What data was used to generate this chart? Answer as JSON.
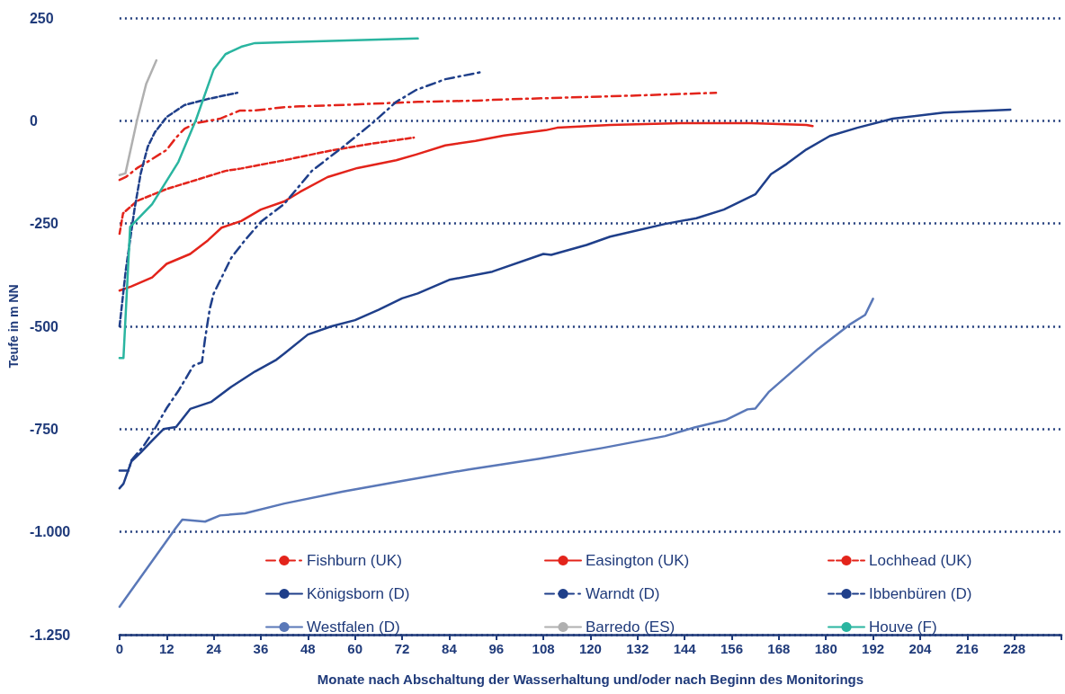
{
  "chart_data": {
    "type": "line",
    "xlabel": "Monate nach Abschaltung der Wasserhaltung und/oder nach Beginn des Monitorings",
    "ylabel": "Teufe in m NN",
    "xlim": [
      0,
      240
    ],
    "xticks": [
      0,
      12,
      24,
      36,
      48,
      60,
      72,
      84,
      96,
      108,
      120,
      132,
      144,
      156,
      168,
      180,
      192,
      204,
      216,
      228,
      {
        "value": 240,
        "label": null
      }
    ],
    "ylim": [
      -1250,
      250
    ],
    "yticks": [
      {
        "value": -1250,
        "label": "-1.250"
      },
      {
        "value": -1000,
        "label": "-1.000"
      },
      -750,
      -500,
      -250,
      0,
      250
    ],
    "grid": "y",
    "legend": "bottom",
    "marker": "none",
    "series": [
      {
        "name": "Fishburn (UK)",
        "color": "#e3241b",
        "line_style": "dashdot",
        "x": [
          0,
          1.6,
          4.5,
          8.3,
          12,
          14.4,
          16.6,
          19.5,
          25.6,
          30.7,
          34.5,
          42,
          46,
          61,
          76,
          91,
          98,
          109,
          130,
          152
        ],
        "values": [
          -144,
          -137,
          -115,
          -93,
          -71,
          -41,
          -19,
          -6,
          5,
          25,
          25,
          33,
          35,
          40,
          46,
          49,
          52,
          55,
          61,
          68
        ]
      },
      {
        "name": "Easington (UK)",
        "color": "#e3241b",
        "line_style": "solid",
        "x": [
          0,
          3,
          8.3,
          12,
          18,
          22.5,
          26,
          31,
          36,
          42,
          46,
          53,
          60.6,
          70.5,
          75.6,
          83,
          90.7,
          98,
          108.6,
          111.5,
          125,
          143,
          161,
          175,
          176.6
        ],
        "values": [
          -413,
          -403,
          -381,
          -348,
          -324,
          -291,
          -260,
          -244,
          -216,
          -196,
          -173,
          -137,
          -115,
          -96,
          -82,
          -60,
          -49,
          -36,
          -23,
          -17,
          -10,
          -6,
          -6,
          -10,
          -13
        ]
      },
      {
        "name": "Lochhead (UK)",
        "color": "#e3241b",
        "line_style": "dashed",
        "x": [
          0,
          0.9,
          4.5,
          12,
          19.5,
          27,
          31,
          42,
          53,
          64,
          75
        ],
        "values": [
          -275,
          -225,
          -195,
          -166,
          -144,
          -122,
          -116,
          -96,
          -74,
          -56,
          -41
        ]
      },
      {
        "name": "Königsborn (D)",
        "color": "#1f3f8a",
        "line_style": "solid",
        "x": [
          0,
          1,
          3,
          5.4,
          8.3,
          11.2,
          14.4,
          18,
          23.3,
          28.5,
          34.5,
          40,
          42,
          48,
          54,
          60,
          66,
          72,
          76,
          84,
          95,
          108,
          110,
          119,
          125,
          139,
          147,
          154,
          162,
          166,
          170,
          175,
          181,
          188,
          197,
          210,
          227
        ],
        "values": [
          -894,
          -883,
          -829,
          -807,
          -778,
          -750,
          -745,
          -701,
          -684,
          -647,
          -610,
          -581,
          -566,
          -520,
          -500,
          -485,
          -460,
          -432,
          -420,
          -387,
          -367,
          -324,
          -326,
          -302,
          -282,
          -251,
          -237,
          -216,
          -179,
          -130,
          -105,
          -70,
          -37,
          -17,
          5,
          20,
          27
        ]
      },
      {
        "name": "Warndt (D)",
        "color": "#1f3f8a",
        "line_style": "dashdot",
        "x": [
          0,
          2.3,
          3,
          6,
          9,
          12,
          15,
          18.8,
          21,
          21.8,
          23,
          24,
          28.5,
          32,
          36,
          42,
          49,
          57,
          64.4,
          70.5,
          75.6,
          83,
          92.5
        ],
        "values": [
          -851,
          -851,
          -826,
          -793,
          -749,
          -699,
          -657,
          -596,
          -587,
          -530,
          -457,
          -420,
          -333,
          -290,
          -246,
          -202,
          -122,
          -63,
          -6,
          46,
          75,
          101,
          119
        ]
      },
      {
        "name": "Ibbenbüren (D)",
        "color": "#1f3f8a",
        "line_style": "dashed",
        "x": [
          0,
          1.6,
          3.8,
          5.4,
          7.2,
          9,
          12,
          16.5,
          22.5,
          30
        ],
        "values": [
          -500,
          -363,
          -216,
          -128,
          -63,
          -28,
          9,
          38,
          53,
          68
        ]
      },
      {
        "name": "Westfalen (D)",
        "color": "#5a78b8",
        "line_style": "solid",
        "x": [
          0,
          14.4,
          16,
          21.8,
          25.6,
          32,
          42,
          57,
          72,
          89,
          107,
          123,
          139,
          146.5,
          154.4,
          160,
          162,
          165.4,
          178,
          186,
          190,
          192
        ],
        "values": [
          -1182,
          -990,
          -970,
          -975,
          -960,
          -955,
          -931,
          -902,
          -876,
          -848,
          -822,
          -796,
          -767,
          -746,
          -728,
          -702,
          -700,
          -660,
          -555,
          -496,
          -472,
          -433
        ]
      },
      {
        "name": "Barredo (ES)",
        "color": "#b0b0b0",
        "line_style": "solid",
        "x": [
          0,
          1.5,
          4.5,
          6.8,
          9.4
        ],
        "values": [
          -132,
          -128,
          3,
          90,
          147
        ]
      },
      {
        "name": "Houve (F)",
        "color": "#2ab5a0",
        "line_style": "solid",
        "x": [
          0,
          1,
          2.7,
          8.3,
          15,
          19.5,
          24,
          27,
          31,
          34.5,
          42,
          76
        ],
        "values": [
          -577,
          -577,
          -258,
          -203,
          -100,
          3,
          125,
          162,
          180,
          189,
          191,
          200
        ]
      }
    ]
  }
}
